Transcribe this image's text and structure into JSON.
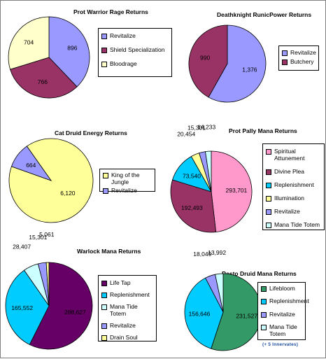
{
  "colors": {
    "periwinkle": "#9999ff",
    "plum": "#993366",
    "cream": "#ffffcc",
    "pink": "#ff99cc",
    "cyan": "#00ccff",
    "pale_yellow": "#ffff99",
    "light_cyan": "#ccffff",
    "violet": "#660066",
    "green": "#339966"
  },
  "chart_data": [
    {
      "type": "pie",
      "title": "Prot Warrior Rage Returns",
      "slices": [
        {
          "label": "Revitalize",
          "value": 896,
          "value_label": "896",
          "color": "#9999ff"
        },
        {
          "label": "Shield Specialization",
          "value": 766,
          "value_label": "766",
          "color": "#993366"
        },
        {
          "label": "Bloodrage",
          "value": 704,
          "value_label": "704",
          "color": "#ffffcc"
        }
      ],
      "legend": "right"
    },
    {
      "type": "pie",
      "title": "Deathknight RunicPower Returns",
      "slices": [
        {
          "label": "Revitalize",
          "value": 1376,
          "value_label": "1,376",
          "color": "#9999ff"
        },
        {
          "label": "Butchery",
          "value": 990,
          "value_label": "990",
          "color": "#993366"
        }
      ],
      "legend": "right"
    },
    {
      "type": "pie",
      "title": "Cat Druid Energy Returns",
      "slices": [
        {
          "label": "King of the Jungle",
          "value": 6120,
          "value_label": "6,120",
          "color": "#ffff99"
        },
        {
          "label": "Revitalize",
          "value": 664,
          "value_label": "664",
          "color": "#9999ff"
        }
      ],
      "legend": "right"
    },
    {
      "type": "pie",
      "title": "Prot Pally Mana Returns",
      "slices": [
        {
          "label": "Spiritual Attunement",
          "value": 293701,
          "value_label": "293,701",
          "color": "#ff99cc"
        },
        {
          "label": "Divine Plea",
          "value": 192493,
          "value_label": "192,493",
          "color": "#993366"
        },
        {
          "label": "Replenishment",
          "value": 73540,
          "value_label": "73,540",
          "color": "#00ccff"
        },
        {
          "label": "Illumination",
          "value": 20454,
          "value_label": "20,454",
          "color": "#ffff99"
        },
        {
          "label": "Revitalize",
          "value": 15301,
          "value_label": "15,301",
          "color": "#9999ff"
        },
        {
          "label": "Mana Tide Totem",
          "value": 14233,
          "value_label": "14,233",
          "color": "#ccffff"
        }
      ],
      "legend": "right"
    },
    {
      "type": "pie",
      "title": "Warlock Mana Returns",
      "slices": [
        {
          "label": "Life Tap",
          "value": 288627,
          "value_label": "288,627",
          "color": "#660066"
        },
        {
          "label": "Replenishment",
          "value": 165552,
          "value_label": "165,552",
          "color": "#00ccff"
        },
        {
          "label": "Mana Tide Totem",
          "value": 28407,
          "value_label": "28,407",
          "color": "#ccffff"
        },
        {
          "label": "Revitalize",
          "value": 15301,
          "value_label": "15,301",
          "color": "#9999ff"
        },
        {
          "label": "Drain Soul",
          "value": 5061,
          "value_label": "5,061",
          "color": "#ffff99"
        }
      ],
      "legend": "right"
    },
    {
      "type": "pie",
      "title": "Resto Druid Mana Returns",
      "slices": [
        {
          "label": "Lifebloom",
          "value": 231527,
          "value_label": "231,527",
          "color": "#339966"
        },
        {
          "label": "Replenishment",
          "value": 156646,
          "value_label": "156,646",
          "color": "#00ccff"
        },
        {
          "label": "Revitalize",
          "value": 18049,
          "value_label": "18,049",
          "color": "#9999ff"
        },
        {
          "label": "Mana Tide Totem",
          "value": 13992,
          "value_label": "13,992",
          "color": "#ccffff"
        }
      ],
      "legend": "right",
      "footnote": "(+ 5 Innervates)"
    }
  ]
}
